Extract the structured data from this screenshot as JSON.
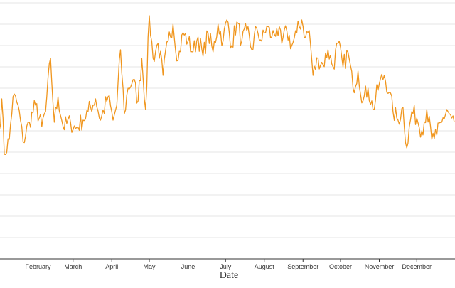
{
  "chart_data": {
    "type": "line",
    "xlabel": "Date",
    "ylabel": "",
    "grid": true,
    "legend": "none",
    "series_color": "#f0961e",
    "grid_color": "#e6e6e6",
    "axis_color": "#333333",
    "x_ticks": [
      {
        "label": "February",
        "day": 32
      },
      {
        "label": "March",
        "day": 60
      },
      {
        "label": "April",
        "day": 91
      },
      {
        "label": "May",
        "day": 121
      },
      {
        "label": "June",
        "day": 152
      },
      {
        "label": "July",
        "day": 182
      },
      {
        "label": "August",
        "day": 213
      },
      {
        "label": "September",
        "day": 244
      },
      {
        "label": "October",
        "day": 274
      },
      {
        "label": "November",
        "day": 305
      },
      {
        "label": "December",
        "day": 335
      }
    ],
    "anchors": [
      [
        1,
        10.0
      ],
      [
        3,
        17.5
      ],
      [
        5,
        4.5
      ],
      [
        9,
        8.0
      ],
      [
        12,
        18.0
      ],
      [
        16,
        16.0
      ],
      [
        20,
        7.5
      ],
      [
        25,
        12.0
      ],
      [
        30,
        16.0
      ],
      [
        35,
        11.0
      ],
      [
        38,
        14.5
      ],
      [
        42,
        27.0
      ],
      [
        45,
        12.0
      ],
      [
        48,
        18.0
      ],
      [
        52,
        11.0
      ],
      [
        58,
        12.0
      ],
      [
        62,
        10.5
      ],
      [
        68,
        12.5
      ],
      [
        72,
        14.5
      ],
      [
        78,
        17.5
      ],
      [
        82,
        12.5
      ],
      [
        88,
        18.0
      ],
      [
        92,
        12.5
      ],
      [
        95,
        16.0
      ],
      [
        98,
        29.0
      ],
      [
        101,
        14.0
      ],
      [
        104,
        20.0
      ],
      [
        108,
        22.0
      ],
      [
        112,
        17.0
      ],
      [
        115,
        27.0
      ],
      [
        118,
        15.0
      ],
      [
        121,
        37.0
      ],
      [
        124,
        27.0
      ],
      [
        128,
        30.5
      ],
      [
        132,
        23.0
      ],
      [
        136,
        31.0
      ],
      [
        140,
        35.0
      ],
      [
        144,
        26.5
      ],
      [
        148,
        33.0
      ],
      [
        152,
        31.0
      ],
      [
        156,
        28.5
      ],
      [
        160,
        32.0
      ],
      [
        164,
        27.5
      ],
      [
        168,
        33.0
      ],
      [
        172,
        28.5
      ],
      [
        176,
        35.0
      ],
      [
        180,
        31.0
      ],
      [
        183,
        36.0
      ],
      [
        187,
        30.0
      ],
      [
        191,
        35.5
      ],
      [
        195,
        31.0
      ],
      [
        199,
        33.5
      ],
      [
        203,
        29.0
      ],
      [
        207,
        34.0
      ],
      [
        211,
        31.0
      ],
      [
        215,
        34.5
      ],
      [
        219,
        32.0
      ],
      [
        223,
        34.0
      ],
      [
        227,
        30.5
      ],
      [
        231,
        33.5
      ],
      [
        235,
        30.0
      ],
      [
        239,
        33.0
      ],
      [
        243,
        36.0
      ],
      [
        246,
        32.0
      ],
      [
        249,
        33.5
      ],
      [
        252,
        23.0
      ],
      [
        256,
        27.0
      ],
      [
        260,
        25.5
      ],
      [
        264,
        29.0
      ],
      [
        268,
        25.0
      ],
      [
        272,
        30.5
      ],
      [
        276,
        25.0
      ],
      [
        280,
        28.5
      ],
      [
        284,
        20.0
      ],
      [
        288,
        24.0
      ],
      [
        292,
        17.0
      ],
      [
        296,
        20.0
      ],
      [
        300,
        15.0
      ],
      [
        305,
        21.0
      ],
      [
        309,
        23.0
      ],
      [
        313,
        19.0
      ],
      [
        316,
        14.5
      ],
      [
        320,
        12.5
      ],
      [
        324,
        15.5
      ],
      [
        327,
        6.0
      ],
      [
        331,
        14.5
      ],
      [
        335,
        13.0
      ],
      [
        339,
        10.0
      ],
      [
        343,
        15.0
      ],
      [
        347,
        8.0
      ],
      [
        351,
        9.0
      ],
      [
        355,
        12.0
      ],
      [
        359,
        15.0
      ],
      [
        363,
        13.0
      ],
      [
        365,
        12.0
      ]
    ],
    "xlim": [
      1,
      365
    ],
    "ylim": [
      -20,
      40
    ]
  }
}
